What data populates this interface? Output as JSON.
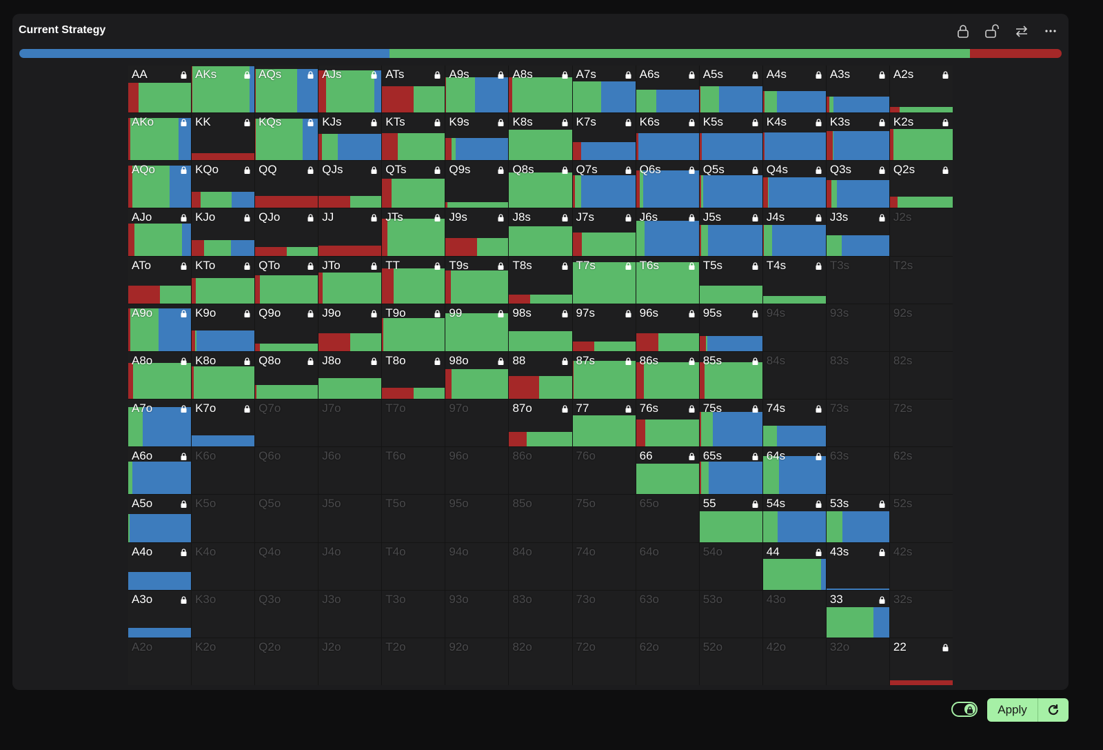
{
  "header": {
    "title": "Current Strategy",
    "icons": [
      "lock-icon",
      "unlock-icon",
      "swap-icon",
      "more-icon"
    ]
  },
  "colors": {
    "raise": "#a52828",
    "call": "#5bba6a",
    "fold": "#3d7cbd"
  },
  "overall_mix": {
    "fold": 0.355,
    "call": 0.557,
    "raise": 0.088
  },
  "grid": {
    "note_format": "label, weight, red, green, blue",
    "rows": [
      [
        [
          "AA",
          0.63,
          0.17,
          0.83,
          0
        ],
        [
          "AKs",
          0.99,
          0.01,
          0.91,
          0.08
        ],
        [
          "AQs",
          0.93,
          0.01,
          0.66,
          0.33
        ],
        [
          "AJs",
          0.9,
          0.12,
          0.77,
          0.11
        ],
        [
          "ATs",
          0.56,
          0.5,
          0.5,
          0
        ],
        [
          "A9s",
          0.75,
          0.01,
          0.46,
          0.53
        ],
        [
          "A8s",
          0.75,
          0.05,
          0.95,
          0
        ],
        [
          "A7s",
          0.66,
          0,
          0.46,
          0.54
        ],
        [
          "A6s",
          0.49,
          0,
          0.32,
          0.68
        ],
        [
          "A5s",
          0.56,
          0.01,
          0.3,
          0.69
        ],
        [
          "A4s",
          0.46,
          0.02,
          0.2,
          0.78
        ],
        [
          "A3s",
          0.34,
          0.05,
          0.06,
          0.89
        ],
        [
          "A2s",
          0.12,
          0.15,
          0.85,
          0
        ]
      ],
      [
        [
          "AKo",
          0.9,
          0.03,
          0.77,
          0.2
        ],
        [
          "KK",
          0.15,
          1,
          0,
          0
        ],
        [
          "KQs",
          0.88,
          0.01,
          0.75,
          0.24
        ],
        [
          "KJs",
          0.56,
          0.05,
          0.25,
          0.7
        ],
        [
          "KTs",
          0.57,
          0.25,
          0.75,
          0
        ],
        [
          "K9s",
          0.48,
          0.1,
          0.06,
          0.84
        ],
        [
          "K8s",
          0.65,
          0,
          1,
          0
        ],
        [
          "K7s",
          0.38,
          0.14,
          0,
          0.86
        ],
        [
          "K6s",
          0.57,
          0.04,
          0,
          0.96
        ],
        [
          "K5s",
          0.57,
          0.04,
          0,
          0.96
        ],
        [
          "K4s",
          0.59,
          0.03,
          0,
          0.97
        ],
        [
          "K3s",
          0.62,
          0.1,
          0.01,
          0.89
        ],
        [
          "K2s",
          0.66,
          0.06,
          0.94,
          0
        ]
      ],
      [
        [
          "AQo",
          0.9,
          0.07,
          0.59,
          0.34
        ],
        [
          "KQo",
          0.35,
          0.14,
          0.5,
          0.36
        ],
        [
          "QQ",
          0.25,
          1,
          0,
          0
        ],
        [
          "QJs",
          0.25,
          0.5,
          0.5,
          0
        ],
        [
          "QTs",
          0.62,
          0.15,
          0.85,
          0
        ],
        [
          "Q9s",
          0.13,
          0.03,
          0.97,
          0
        ],
        [
          "Q8s",
          0.75,
          0,
          1,
          0
        ],
        [
          "Q7s",
          0.7,
          0.04,
          0.1,
          0.86
        ],
        [
          "Q6s",
          0.8,
          0.06,
          0.05,
          0.89
        ],
        [
          "Q5s",
          0.7,
          0.03,
          0.03,
          0.94
        ],
        [
          "Q4s",
          0.65,
          0.08,
          0.01,
          0.91
        ],
        [
          "Q3s",
          0.6,
          0.08,
          0.09,
          0.83
        ],
        [
          "Q2s",
          0.24,
          0.12,
          0.88,
          0
        ]
      ],
      [
        [
          "AJo",
          0.68,
          0.1,
          0.76,
          0.14
        ],
        [
          "KJo",
          0.33,
          0.2,
          0.42,
          0.38
        ],
        [
          "QJo",
          0.19,
          0.5,
          0.5,
          0
        ],
        [
          "JJ",
          0.21,
          1,
          0,
          0
        ],
        [
          "JTs",
          0.78,
          0.09,
          0.91,
          0
        ],
        [
          "J9s",
          0.38,
          0.5,
          0.5,
          0
        ],
        [
          "J8s",
          0.63,
          0,
          1,
          0
        ],
        [
          "J7s",
          0.5,
          0.15,
          0.85,
          0
        ],
        [
          "J6s",
          0.74,
          0,
          0.14,
          0.86
        ],
        [
          "J5s",
          0.66,
          0.02,
          0.12,
          0.86
        ],
        [
          "J4s",
          0.66,
          0.01,
          0.14,
          0.85
        ],
        [
          "J3s",
          0.44,
          0,
          0.24,
          0.76
        ],
        [
          "J2s"
        ]
      ],
      [
        [
          "ATo",
          0.38,
          0.5,
          0.5,
          0
        ],
        [
          "KTo",
          0.54,
          0.06,
          0.94,
          0
        ],
        [
          "QTo",
          0.6,
          0.08,
          0.92,
          0
        ],
        [
          "JTo",
          0.65,
          0.06,
          0.94,
          0
        ],
        [
          "TT",
          0.75,
          0.18,
          0.82,
          0
        ],
        [
          "T9s",
          0.7,
          0.08,
          0.92,
          0
        ],
        [
          "T8s",
          0.19,
          0.33,
          0.67,
          0
        ],
        [
          "T7s",
          0.87,
          0,
          1,
          0
        ],
        [
          "T6s",
          0.88,
          0,
          1,
          0
        ],
        [
          "T5s",
          0.38,
          0,
          1,
          0
        ],
        [
          "T4s",
          0.16,
          0,
          1,
          0
        ],
        [
          "T3s"
        ],
        [
          "T2s"
        ]
      ],
      [
        [
          "A9o",
          0.91,
          0.03,
          0.45,
          0.52
        ],
        [
          "K9o",
          0.44,
          0.05,
          0.03,
          0.92
        ],
        [
          "Q9o",
          0.16,
          0.08,
          0.92,
          0
        ],
        [
          "J9o",
          0.38,
          0.5,
          0.5,
          0
        ],
        [
          "T9o",
          0.7,
          0.02,
          0.98,
          0
        ],
        [
          "99",
          0.8,
          0,
          1,
          0
        ],
        [
          "98s",
          0.43,
          0,
          1,
          0
        ],
        [
          "97s",
          0.21,
          0.35,
          0.65,
          0
        ],
        [
          "96s",
          0.38,
          0.36,
          0.64,
          0
        ],
        [
          "95s",
          0.32,
          0.1,
          0.02,
          0.88
        ],
        [
          "94s"
        ],
        [
          "93s"
        ],
        [
          "92s"
        ]
      ],
      [
        [
          "A8o",
          0.76,
          0.08,
          0.92,
          0
        ],
        [
          "K8o",
          0.69,
          0.03,
          0.97,
          0
        ],
        [
          "Q8o",
          0.29,
          0.02,
          0.98,
          0
        ],
        [
          "J8o",
          0.44,
          0,
          1,
          0
        ],
        [
          "T8o",
          0.23,
          0.5,
          0.5,
          0
        ],
        [
          "98o",
          0.63,
          0.1,
          0.9,
          0
        ],
        [
          "88",
          0.49,
          0.48,
          0.52,
          0
        ],
        [
          "87s",
          0.81,
          0.02,
          0.98,
          0
        ],
        [
          "86s",
          0.78,
          0.12,
          0.88,
          0
        ],
        [
          "85s",
          0.78,
          0.08,
          0.92,
          0
        ],
        [
          "84s"
        ],
        [
          "83s"
        ],
        [
          "82s"
        ]
      ],
      [
        [
          "A7o",
          0.84,
          0,
          0.23,
          0.77
        ],
        [
          "K7o",
          0.24,
          0,
          0,
          1
        ],
        [
          "Q7o"
        ],
        [
          "J7o"
        ],
        [
          "T7o"
        ],
        [
          "97o"
        ],
        [
          "87o",
          0.31,
          0.28,
          0.72,
          0
        ],
        [
          "77",
          0.66,
          0,
          1,
          0
        ],
        [
          "76s",
          0.57,
          0.15,
          0.85,
          0
        ],
        [
          "75s",
          0.74,
          0.03,
          0.18,
          0.79
        ],
        [
          "74s",
          0.44,
          0,
          0.22,
          0.78
        ],
        [
          "73s"
        ],
        [
          "72s"
        ]
      ],
      [
        [
          "A6o",
          0.69,
          0,
          0.07,
          0.93
        ],
        [
          "K6o"
        ],
        [
          "Q6o"
        ],
        [
          "J6o"
        ],
        [
          "T6o"
        ],
        [
          "96o"
        ],
        [
          "86o"
        ],
        [
          "76o"
        ],
        [
          "66",
          0.65,
          0,
          1,
          0
        ],
        [
          "65s",
          0.69,
          0.03,
          0.12,
          0.85
        ],
        [
          "64s",
          0.81,
          0,
          0.25,
          0.75
        ],
        [
          "63s"
        ],
        [
          "62s"
        ]
      ],
      [
        [
          "A5o",
          0.59,
          0,
          0.02,
          0.98
        ],
        [
          "K5o"
        ],
        [
          "Q5o"
        ],
        [
          "J5o"
        ],
        [
          "T5o"
        ],
        [
          "95o"
        ],
        [
          "85o"
        ],
        [
          "75o"
        ],
        [
          "65o"
        ],
        [
          "55",
          0.65,
          0,
          1,
          0
        ],
        [
          "54s",
          0.65,
          0,
          0.23,
          0.77
        ],
        [
          "53s",
          0.65,
          0,
          0.25,
          0.75
        ],
        [
          "52s"
        ]
      ],
      [
        [
          "A4o",
          0.38,
          0,
          0,
          1
        ],
        [
          "K4o"
        ],
        [
          "Q4o"
        ],
        [
          "J4o"
        ],
        [
          "T4o"
        ],
        [
          "94o"
        ],
        [
          "84o"
        ],
        [
          "74o"
        ],
        [
          "64o"
        ],
        [
          "54o"
        ],
        [
          "44",
          0.66,
          0,
          0.93,
          0.07
        ],
        [
          "43s",
          0.03,
          0,
          0,
          1
        ],
        [
          "42s"
        ]
      ],
      [
        [
          "A3o",
          0.21,
          0,
          0,
          1
        ],
        [
          "K3o"
        ],
        [
          "Q3o"
        ],
        [
          "J3o"
        ],
        [
          "T3o"
        ],
        [
          "93o"
        ],
        [
          "83o"
        ],
        [
          "73o"
        ],
        [
          "63o"
        ],
        [
          "53o"
        ],
        [
          "43o"
        ],
        [
          "33",
          0.65,
          0,
          0.75,
          0.25
        ],
        [
          "32s"
        ]
      ],
      [
        [
          "A2o"
        ],
        [
          "K2o"
        ],
        [
          "Q2o"
        ],
        [
          "J2o"
        ],
        [
          "T2o"
        ],
        [
          "92o"
        ],
        [
          "82o"
        ],
        [
          "72o"
        ],
        [
          "62o"
        ],
        [
          "52o"
        ],
        [
          "42o"
        ],
        [
          "32o"
        ],
        [
          "22",
          0.1,
          1,
          0,
          0
        ]
      ]
    ]
  },
  "footer": {
    "apply_label": "Apply",
    "lock_toggle_on": true
  }
}
